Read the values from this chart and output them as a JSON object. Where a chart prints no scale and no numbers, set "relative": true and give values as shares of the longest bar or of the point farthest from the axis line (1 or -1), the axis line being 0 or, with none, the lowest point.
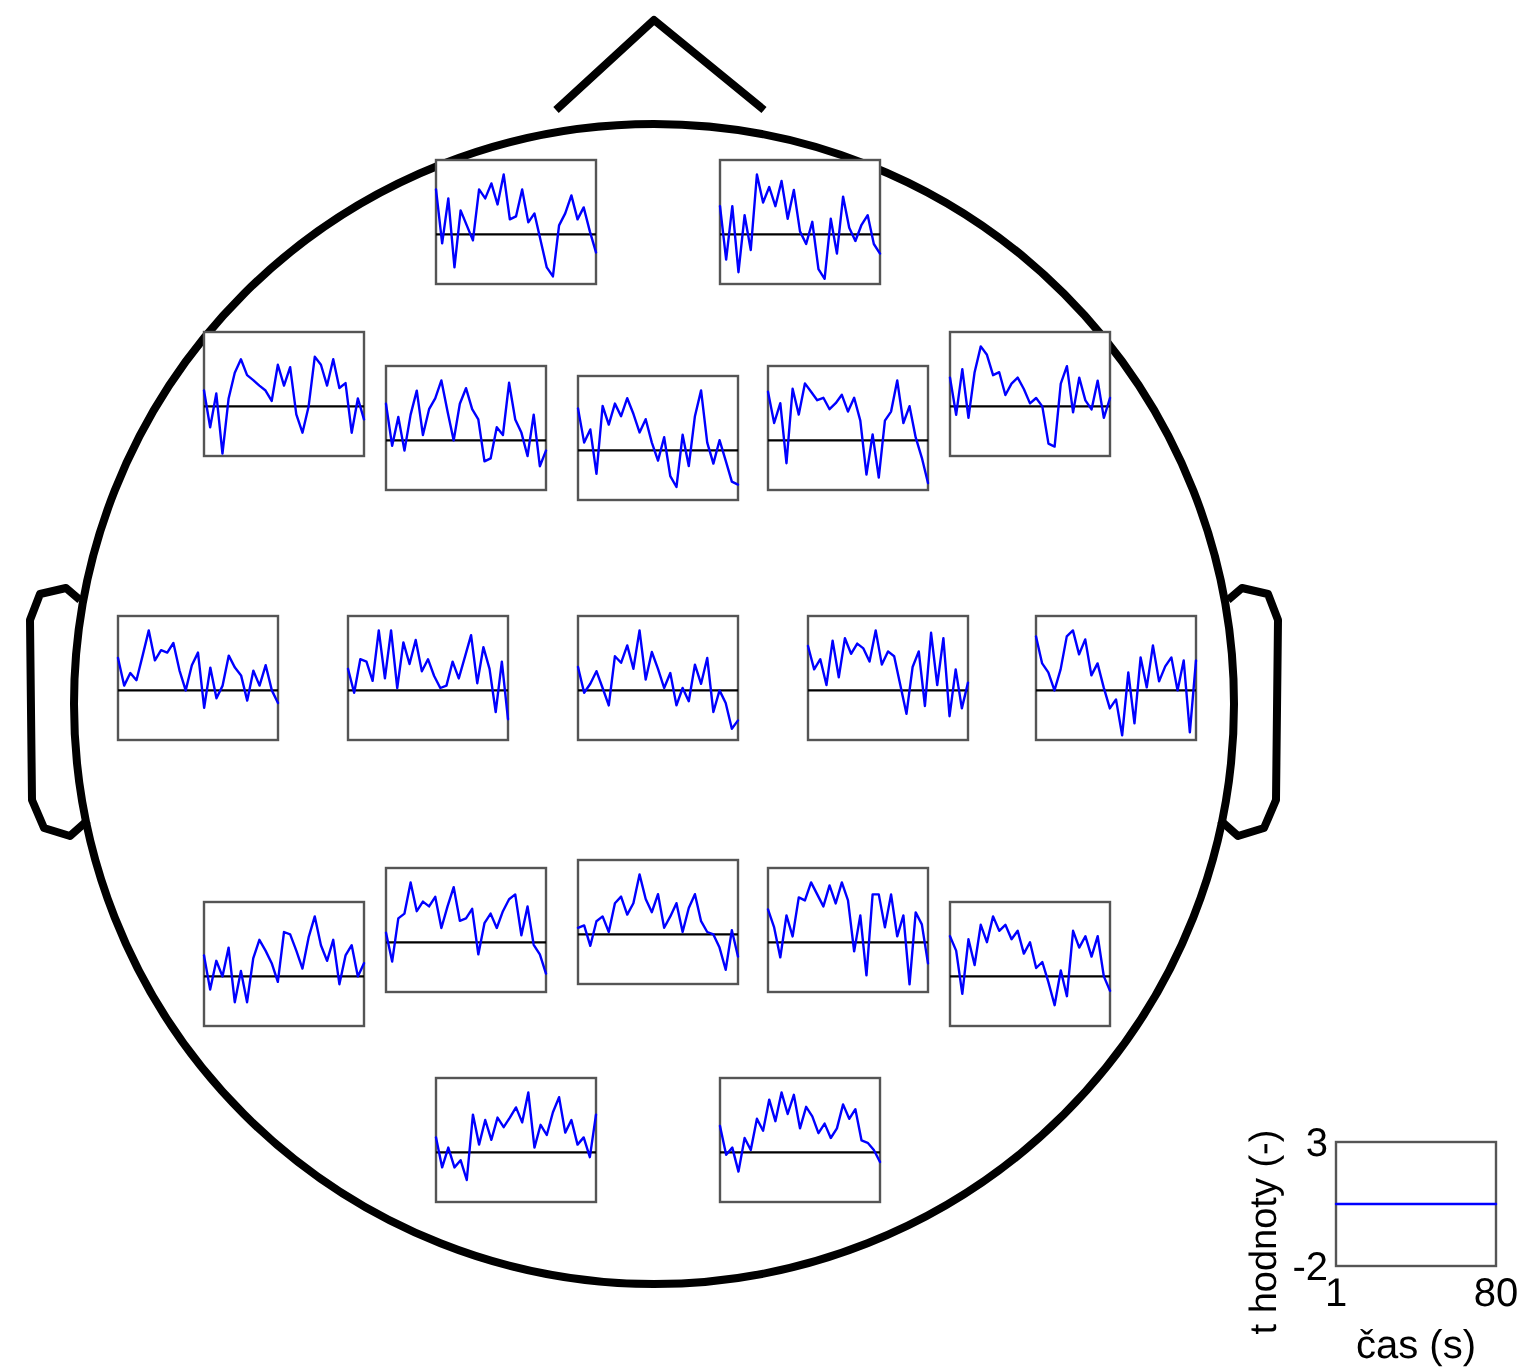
{
  "chart_data": [
    {
      "type": "line",
      "relative": true,
      "categories": [
        null,
        null,
        null,
        null,
        null,
        null,
        null,
        null,
        null,
        null,
        null,
        null,
        null,
        null,
        null,
        null,
        null,
        null,
        null,
        null,
        null,
        null,
        null,
        null,
        null,
        null,
        null
      ],
      "series": [
        {
          "color": "#0000ff",
          "values": [
            0.75,
            -0.15,
            0.6,
            -0.55,
            0.4,
            0.15,
            -0.1,
            0.75,
            0.6,
            0.85,
            0.5,
            1,
            0.25,
            0.3,
            0.75,
            0.2,
            0.35,
            -0.1,
            -0.55,
            -0.7,
            0.15,
            0.35,
            0.65,
            0.25,
            0.45,
            0.05,
            -0.3
          ]
        }
      ]
    },
    {
      "type": "line",
      "relative": true,
      "categories": [
        null,
        null,
        null,
        null,
        null,
        null,
        null,
        null,
        null,
        null,
        null,
        null,
        null,
        null,
        null,
        null,
        null,
        null,
        null,
        null,
        null,
        null,
        null,
        null,
        null,
        null,
        null
      ],
      "series": [
        {
          "color": "#0000ff",
          "values": [
            0.47,
            -0.42,
            0.47,
            -0.63,
            0.32,
            -0.26,
            1,
            0.53,
            0.79,
            0.47,
            0.89,
            0.26,
            0.74,
            0.05,
            -0.16,
            0.21,
            -0.58,
            -0.74,
            0.26,
            -0.32,
            0.63,
            0.11,
            -0.11,
            0.16,
            0.32,
            -0.16,
            -0.32
          ]
        }
      ]
    },
    {
      "type": "line",
      "relative": true,
      "categories": [
        null,
        null,
        null,
        null,
        null,
        null,
        null,
        null,
        null,
        null,
        null,
        null,
        null,
        null,
        null,
        null,
        null,
        null,
        null,
        null,
        null,
        null,
        null,
        null,
        null,
        null,
        null
      ],
      "series": [
        {
          "color": "#0000ff",
          "values": [
            0.32,
            -0.42,
            0.26,
            -0.95,
            0.16,
            0.68,
            0.95,
            0.63,
            0.53,
            0.42,
            0.32,
            0.11,
            0.84,
            0.42,
            0.79,
            -0.16,
            -0.53,
            0,
            1,
            0.84,
            0.42,
            0.95,
            0.37,
            0.47,
            -0.53,
            0.16,
            -0.26
          ]
        }
      ]
    },
    {
      "type": "line",
      "relative": true,
      "categories": [
        null,
        null,
        null,
        null,
        null,
        null,
        null,
        null,
        null,
        null,
        null,
        null,
        null,
        null,
        null,
        null,
        null,
        null,
        null,
        null,
        null,
        null,
        null,
        null,
        null,
        null,
        null
      ],
      "series": [
        {
          "color": "#0000ff",
          "values": [
            0.61,
            -0.09,
            0.39,
            -0.17,
            0.43,
            0.83,
            0.09,
            0.52,
            0.7,
            1,
            0.48,
            0,
            0.61,
            0.87,
            0.52,
            0.35,
            -0.35,
            -0.3,
            0.22,
            0.09,
            0.96,
            0.35,
            0.13,
            -0.26,
            0.43,
            -0.43,
            -0.17
          ]
        }
      ]
    },
    {
      "type": "line",
      "relative": true,
      "categories": [
        null,
        null,
        null,
        null,
        null,
        null,
        null,
        null,
        null,
        null,
        null,
        null,
        null,
        null,
        null,
        null,
        null,
        null,
        null,
        null,
        null,
        null,
        null,
        null,
        null,
        null,
        null
      ],
      "series": [
        {
          "color": "#0000ff",
          "values": [
            0.7,
            0.13,
            0.35,
            -0.39,
            0.74,
            0.43,
            0.78,
            0.57,
            0.87,
            0.61,
            0.3,
            0.52,
            0.13,
            -0.17,
            0.22,
            -0.43,
            -0.61,
            0.26,
            -0.26,
            0.57,
            1,
            0.13,
            -0.22,
            0.17,
            -0.17,
            -0.52,
            -0.57
          ]
        }
      ]
    },
    {
      "type": "line",
      "relative": true,
      "categories": [
        null,
        null,
        null,
        null,
        null,
        null,
        null,
        null,
        null,
        null,
        null,
        null,
        null,
        null,
        null,
        null,
        null,
        null,
        null,
        null,
        null,
        null,
        null,
        null,
        null,
        null,
        null
      ],
      "series": [
        {
          "color": "#0000ff",
          "values": [
            0.81,
            0.29,
            0.62,
            -0.38,
            0.86,
            0.43,
            0.95,
            0.81,
            0.67,
            0.71,
            0.52,
            0.62,
            0.76,
            0.48,
            0.71,
            0.33,
            -0.57,
            0.1,
            -0.62,
            0.33,
            0.48,
            1,
            0.29,
            0.57,
            0.05,
            -0.29,
            -0.71
          ]
        }
      ]
    },
    {
      "type": "line",
      "relative": true,
      "categories": [
        null,
        null,
        null,
        null,
        null,
        null,
        null,
        null,
        null,
        null,
        null,
        null,
        null,
        null,
        null,
        null,
        null,
        null,
        null,
        null,
        null,
        null,
        null,
        null,
        null,
        null,
        null
      ],
      "series": [
        {
          "color": "#0000ff",
          "values": [
            0.48,
            -0.14,
            0.62,
            -0.19,
            0.57,
            1,
            0.86,
            0.52,
            0.57,
            0.19,
            0.38,
            0.48,
            0.29,
            0.05,
            0.14,
            0,
            -0.62,
            -0.67,
            0.38,
            0.67,
            -0.1,
            0.48,
            0.1,
            -0.05,
            0.43,
            -0.19,
            0.14
          ]
        }
      ]
    },
    {
      "type": "line",
      "relative": true,
      "categories": [
        null,
        null,
        null,
        null,
        null,
        null,
        null,
        null,
        null,
        null,
        null,
        null,
        null,
        null,
        null,
        null,
        null,
        null,
        null,
        null,
        null,
        null,
        null,
        null,
        null,
        null,
        null
      ],
      "series": [
        {
          "color": "#0000ff",
          "values": [
            0.54,
            0.08,
            0.29,
            0.17,
            0.58,
            1,
            0.5,
            0.67,
            0.63,
            0.79,
            0.33,
            0,
            0.42,
            0.63,
            -0.29,
            0.38,
            -0.13,
            0.08,
            0.58,
            0.38,
            0.25,
            -0.17,
            0.33,
            0.08,
            0.42,
            0,
            -0.21
          ]
        }
      ]
    },
    {
      "type": "line",
      "relative": true,
      "categories": [
        null,
        null,
        null,
        null,
        null,
        null,
        null,
        null,
        null,
        null,
        null,
        null,
        null,
        null,
        null,
        null,
        null,
        null,
        null,
        null,
        null,
        null,
        null,
        null,
        null,
        null,
        null
      ],
      "series": [
        {
          "color": "#0000ff",
          "values": [
            0.36,
            -0.04,
            0.52,
            0.48,
            0.16,
            1,
            0.2,
            1,
            0.04,
            0.8,
            0.44,
            0.84,
            0.32,
            0.52,
            0.24,
            0.04,
            0.08,
            0.48,
            0.2,
            0.56,
            0.92,
            0.12,
            0.72,
            0.36,
            -0.36,
            0.48,
            -0.48
          ]
        }
      ]
    },
    {
      "type": "line",
      "relative": true,
      "categories": [
        null,
        null,
        null,
        null,
        null,
        null,
        null,
        null,
        null,
        null,
        null,
        null,
        null,
        null,
        null,
        null,
        null,
        null,
        null,
        null,
        null,
        null,
        null,
        null,
        null,
        null,
        null
      ],
      "series": [
        {
          "color": "#0000ff",
          "values": [
            0.39,
            -0.04,
            0.11,
            0.32,
            0.04,
            -0.25,
            0.57,
            0.46,
            0.75,
            0.36,
            1,
            0.18,
            0.64,
            0.36,
            0.04,
            0.29,
            -0.25,
            0.04,
            -0.18,
            0.43,
            0.11,
            0.54,
            -0.36,
            0,
            -0.21,
            -0.64,
            -0.5
          ]
        }
      ]
    },
    {
      "type": "line",
      "relative": true,
      "categories": [
        null,
        null,
        null,
        null,
        null,
        null,
        null,
        null,
        null,
        null,
        null,
        null,
        null,
        null,
        null,
        null,
        null,
        null,
        null,
        null,
        null,
        null,
        null,
        null,
        null,
        null,
        null
      ],
      "series": [
        {
          "color": "#0000ff",
          "values": [
            0.74,
            0.35,
            0.52,
            0.09,
            0.83,
            0.22,
            0.87,
            0.61,
            0.78,
            0.7,
            0.48,
            1,
            0.43,
            0.65,
            0.57,
            0.09,
            -0.39,
            0.39,
            0.65,
            -0.26,
            0.96,
            0.09,
            0.87,
            -0.43,
            0.35,
            -0.3,
            0.13
          ]
        }
      ]
    },
    {
      "type": "line",
      "relative": true,
      "categories": [
        null,
        null,
        null,
        null,
        null,
        null,
        null,
        null,
        null,
        null,
        null,
        null,
        null,
        null,
        null,
        null,
        null,
        null,
        null,
        null,
        null,
        null,
        null,
        null,
        null,
        null,
        null
      ],
      "series": [
        {
          "color": "#0000ff",
          "values": [
            0.9,
            0.45,
            0.3,
            0,
            0.35,
            0.9,
            1,
            0.6,
            0.85,
            0.25,
            0.45,
            0.05,
            -0.3,
            -0.15,
            -0.75,
            0.3,
            -0.55,
            0.55,
            0.05,
            0.75,
            0.15,
            0.4,
            0.55,
            0,
            0.5,
            -0.7,
            0.5
          ]
        }
      ]
    },
    {
      "type": "line",
      "relative": true,
      "categories": [
        null,
        null,
        null,
        null,
        null,
        null,
        null,
        null,
        null,
        null,
        null,
        null,
        null,
        null,
        null,
        null,
        null,
        null,
        null,
        null,
        null,
        null,
        null,
        null,
        null,
        null,
        null
      ],
      "series": [
        {
          "color": "#0000ff",
          "values": [
            0.35,
            -0.22,
            0.26,
            0,
            0.48,
            -0.43,
            0.09,
            -0.43,
            0.3,
            0.61,
            0.43,
            0.22,
            -0.09,
            0.74,
            0.7,
            0.43,
            0.13,
            0.65,
            1,
            0.52,
            0.26,
            0.61,
            -0.13,
            0.35,
            0.52,
            0,
            0.22
          ]
        }
      ]
    },
    {
      "type": "line",
      "relative": true,
      "categories": [
        null,
        null,
        null,
        null,
        null,
        null,
        null,
        null,
        null,
        null,
        null,
        null,
        null,
        null,
        null,
        null,
        null,
        null,
        null,
        null,
        null,
        null,
        null,
        null,
        null,
        null,
        null
      ],
      "series": [
        {
          "color": "#0000ff",
          "values": [
            0.16,
            -0.32,
            0.4,
            0.48,
            1,
            0.52,
            0.68,
            0.6,
            0.76,
            0.24,
            0.6,
            0.92,
            0.36,
            0.4,
            0.56,
            -0.2,
            0.32,
            0.48,
            0.24,
            0.52,
            0.72,
            0.8,
            0.12,
            0.6,
            -0.04,
            -0.2,
            -0.52
          ]
        }
      ]
    },
    {
      "type": "line",
      "relative": true,
      "categories": [
        null,
        null,
        null,
        null,
        null,
        null,
        null,
        null,
        null,
        null,
        null,
        null,
        null,
        null,
        null,
        null,
        null,
        null,
        null,
        null,
        null,
        null,
        null,
        null,
        null,
        null,
        null
      ],
      "series": [
        {
          "color": "#0000ff",
          "values": [
            0.11,
            0.15,
            -0.19,
            0.22,
            0.3,
            0.04,
            0.52,
            0.63,
            0.33,
            0.52,
            1,
            0.59,
            0.37,
            0.67,
            0.11,
            0.3,
            0.52,
            0.04,
            0.44,
            0.67,
            0.22,
            0.04,
            0,
            -0.22,
            -0.59,
            0.07,
            -0.37
          ]
        }
      ]
    },
    {
      "type": "line",
      "relative": true,
      "categories": [
        null,
        null,
        null,
        null,
        null,
        null,
        null,
        null,
        null,
        null,
        null,
        null,
        null,
        null,
        null,
        null,
        null,
        null,
        null,
        null,
        null,
        null,
        null,
        null,
        null,
        null,
        null
      ],
      "series": [
        {
          "color": "#0000ff",
          "values": [
            0.55,
            0.25,
            -0.25,
            0.45,
            0.1,
            0.75,
            0.7,
            1,
            0.8,
            0.6,
            0.95,
            0.65,
            1,
            0.7,
            -0.15,
            0.45,
            -0.55,
            0.8,
            0.8,
            0.25,
            0.8,
            0.1,
            0.45,
            -0.7,
            0.5,
            0.3,
            -0.35
          ]
        }
      ]
    },
    {
      "type": "line",
      "relative": true,
      "categories": [
        null,
        null,
        null,
        null,
        null,
        null,
        null,
        null,
        null,
        null,
        null,
        null,
        null,
        null,
        null,
        null,
        null,
        null,
        null,
        null,
        null,
        null,
        null,
        null,
        null,
        null,
        null
      ],
      "series": [
        {
          "color": "#0000ff",
          "values": [
            0.67,
            0.43,
            -0.29,
            0.62,
            0.19,
            0.86,
            0.57,
            1,
            0.76,
            0.86,
            0.62,
            0.76,
            0.38,
            0.57,
            0.14,
            0.24,
            -0.1,
            -0.48,
            0.1,
            -0.33,
            0.76,
            0.48,
            0.67,
            0.33,
            0.67,
            0,
            -0.24
          ]
        }
      ]
    },
    {
      "type": "line",
      "relative": true,
      "categories": [
        null,
        null,
        null,
        null,
        null,
        null,
        null,
        null,
        null,
        null,
        null,
        null,
        null,
        null,
        null,
        null,
        null,
        null,
        null,
        null,
        null,
        null,
        null,
        null,
        null,
        null,
        null
      ],
      "series": [
        {
          "color": "#0000ff",
          "values": [
            0.25,
            -0.25,
            0.08,
            -0.25,
            -0.13,
            -0.46,
            0.63,
            0.13,
            0.54,
            0.21,
            0.58,
            0.42,
            0.58,
            0.75,
            0.5,
            1,
            0.08,
            0.46,
            0.29,
            0.67,
            0.92,
            0.33,
            0.54,
            0.13,
            0.25,
            -0.08,
            0.63
          ]
        }
      ]
    },
    {
      "type": "line",
      "relative": true,
      "categories": [
        null,
        null,
        null,
        null,
        null,
        null,
        null,
        null,
        null,
        null,
        null,
        null,
        null,
        null,
        null,
        null,
        null,
        null,
        null,
        null,
        null,
        null,
        null,
        null,
        null,
        null,
        null
      ],
      "series": [
        {
          "color": "#0000ff",
          "values": [
            0.44,
            -0.04,
            0.08,
            -0.32,
            0.24,
            0.04,
            0.56,
            0.36,
            0.88,
            0.52,
            1,
            0.64,
            0.96,
            0.4,
            0.76,
            0.6,
            0.32,
            0.48,
            0.24,
            0.4,
            0.8,
            0.56,
            0.72,
            0.2,
            0.16,
            0.04,
            -0.16
          ]
        }
      ]
    },
    {
      "type": "line",
      "x": [
        1,
        80
      ],
      "xlim": [
        1,
        80
      ],
      "ylim": [
        -2,
        3
      ],
      "xticks": [
        1,
        80
      ],
      "yticks": [
        3,
        -2
      ],
      "xlabel": "čas (s)",
      "ylabel": "t hodnoty (-)",
      "series": [
        {
          "color": "#0000ff",
          "values": [
            0.5,
            0.5
          ]
        }
      ]
    }
  ]
}
